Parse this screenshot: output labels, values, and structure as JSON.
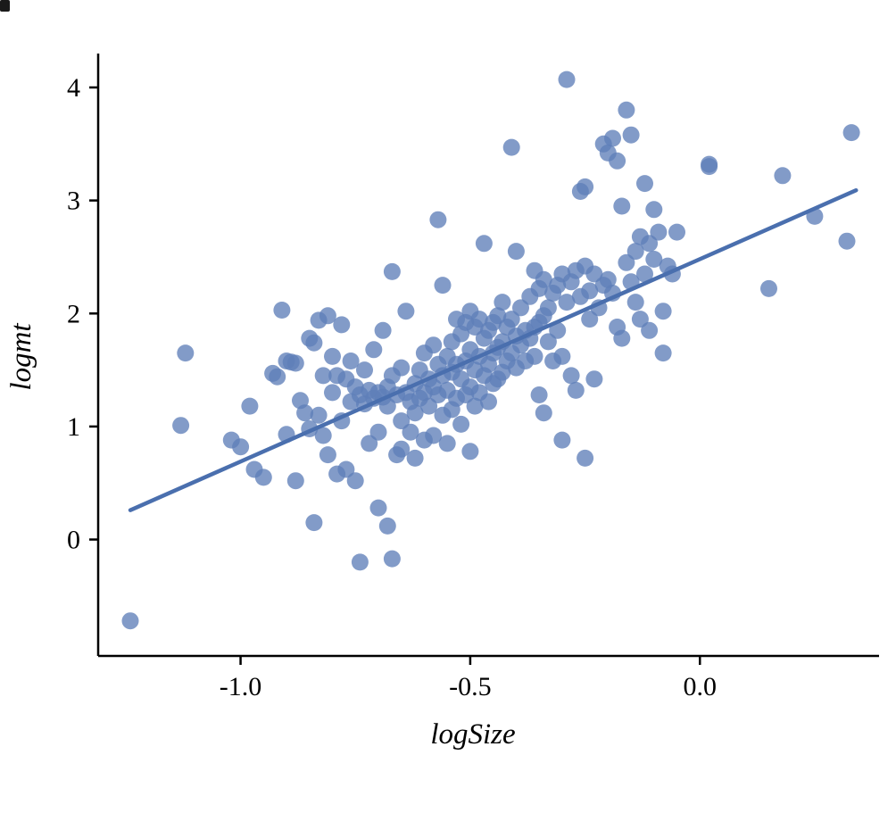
{
  "chart_data": {
    "type": "scatter",
    "title": "",
    "xlabel": "logSize",
    "ylabel": "logmt",
    "xlim": [
      -1.31,
      0.39
    ],
    "ylim": [
      -1.03,
      4.3
    ],
    "grid": false,
    "legend": "none",
    "point_color": "#5f7fb8",
    "point_opacity": 0.78,
    "point_radius": 9.5,
    "line_color": "#4a6fae",
    "axis_color": "#000000",
    "x_ticks": [
      {
        "v": -1.0,
        "label": "-1.0"
      },
      {
        "v": -0.5,
        "label": "-0.5"
      },
      {
        "v": 0.0,
        "label": "0.0"
      }
    ],
    "y_ticks": [
      {
        "v": 0,
        "label": "0"
      },
      {
        "v": 1,
        "label": "1"
      },
      {
        "v": 2,
        "label": "2"
      },
      {
        "v": 3,
        "label": "3"
      },
      {
        "v": 4,
        "label": "4"
      }
    ],
    "trend_line": {
      "x1": -1.24,
      "y1": 0.26,
      "x2": 0.34,
      "y2": 3.09
    },
    "points": [
      [
        -1.24,
        -0.72
      ],
      [
        -1.12,
        1.65
      ],
      [
        -1.13,
        1.01
      ],
      [
        -1.02,
        0.88
      ],
      [
        -1.0,
        0.82
      ],
      [
        -0.98,
        1.18
      ],
      [
        -0.97,
        0.62
      ],
      [
        -0.95,
        0.55
      ],
      [
        -0.93,
        1.47
      ],
      [
        -0.92,
        1.44
      ],
      [
        -0.91,
        2.03
      ],
      [
        -0.9,
        1.58
      ],
      [
        -0.9,
        0.93
      ],
      [
        -0.89,
        1.57
      ],
      [
        -0.88,
        1.56
      ],
      [
        -0.88,
        0.52
      ],
      [
        -0.87,
        1.23
      ],
      [
        -0.86,
        1.12
      ],
      [
        -0.85,
        0.98
      ],
      [
        -0.85,
        1.78
      ],
      [
        -0.84,
        1.74
      ],
      [
        -0.84,
        0.15
      ],
      [
        -0.83,
        1.1
      ],
      [
        -0.83,
        1.94
      ],
      [
        -0.82,
        1.45
      ],
      [
        -0.82,
        0.92
      ],
      [
        -0.81,
        1.98
      ],
      [
        -0.81,
        0.75
      ],
      [
        -0.8,
        1.62
      ],
      [
        -0.8,
        1.3
      ],
      [
        -0.79,
        1.45
      ],
      [
        -0.79,
        0.58
      ],
      [
        -0.78,
        1.9
      ],
      [
        -0.78,
        1.05
      ],
      [
        -0.77,
        1.42
      ],
      [
        -0.77,
        0.62
      ],
      [
        -0.76,
        1.58
      ],
      [
        -0.76,
        1.22
      ],
      [
        -0.75,
        1.35
      ],
      [
        -0.75,
        0.52
      ],
      [
        -0.74,
        -0.2
      ],
      [
        -0.74,
        1.28
      ],
      [
        -0.73,
        1.5
      ],
      [
        -0.73,
        1.2
      ],
      [
        -0.72,
        1.32
      ],
      [
        -0.72,
        0.85
      ],
      [
        -0.71,
        1.25
      ],
      [
        -0.71,
        1.68
      ],
      [
        -0.7,
        1.3
      ],
      [
        -0.7,
        0.95
      ],
      [
        -0.7,
        0.28
      ],
      [
        -0.69,
        1.85
      ],
      [
        -0.69,
        1.26
      ],
      [
        -0.68,
        1.35
      ],
      [
        -0.68,
        0.12
      ],
      [
        -0.68,
        1.18
      ],
      [
        -0.67,
        -0.17
      ],
      [
        -0.67,
        1.45
      ],
      [
        -0.67,
        2.37
      ],
      [
        -0.66,
        1.28
      ],
      [
        -0.66,
        0.75
      ],
      [
        -0.65,
        1.52
      ],
      [
        -0.65,
        1.05
      ],
      [
        -0.65,
        0.8
      ],
      [
        -0.64,
        1.3
      ],
      [
        -0.64,
        2.02
      ],
      [
        -0.63,
        1.22
      ],
      [
        -0.63,
        0.95
      ],
      [
        -0.62,
        1.38
      ],
      [
        -0.62,
        1.12
      ],
      [
        -0.62,
        0.72
      ],
      [
        -0.61,
        1.5
      ],
      [
        -0.61,
        1.25
      ],
      [
        -0.6,
        1.65
      ],
      [
        -0.6,
        1.3
      ],
      [
        -0.6,
        0.88
      ],
      [
        -0.59,
        1.42
      ],
      [
        -0.59,
        1.18
      ],
      [
        -0.58,
        1.72
      ],
      [
        -0.58,
        1.35
      ],
      [
        -0.58,
        0.92
      ],
      [
        -0.57,
        1.55
      ],
      [
        -0.57,
        1.28
      ],
      [
        -0.57,
        2.83
      ],
      [
        -0.56,
        1.45
      ],
      [
        -0.56,
        1.1
      ],
      [
        -0.56,
        2.25
      ],
      [
        -0.55,
        1.62
      ],
      [
        -0.55,
        1.32
      ],
      [
        -0.55,
        0.85
      ],
      [
        -0.54,
        1.75
      ],
      [
        -0.54,
        1.48
      ],
      [
        -0.54,
        1.15
      ],
      [
        -0.53,
        1.95
      ],
      [
        -0.53,
        1.55
      ],
      [
        -0.53,
        1.25
      ],
      [
        -0.52,
        1.82
      ],
      [
        -0.52,
        1.42
      ],
      [
        -0.52,
        1.02
      ],
      [
        -0.51,
        1.92
      ],
      [
        -0.51,
        1.58
      ],
      [
        -0.51,
        1.28
      ],
      [
        -0.5,
        2.02
      ],
      [
        -0.5,
        1.68
      ],
      [
        -0.5,
        1.35
      ],
      [
        -0.5,
        0.78
      ],
      [
        -0.49,
        1.88
      ],
      [
        -0.49,
        1.5
      ],
      [
        -0.49,
        1.18
      ],
      [
        -0.48,
        1.95
      ],
      [
        -0.48,
        1.62
      ],
      [
        -0.48,
        1.3
      ],
      [
        -0.47,
        1.78
      ],
      [
        -0.47,
        1.45
      ],
      [
        -0.47,
        2.62
      ],
      [
        -0.46,
        1.85
      ],
      [
        -0.46,
        1.55
      ],
      [
        -0.46,
        1.22
      ],
      [
        -0.45,
        1.92
      ],
      [
        -0.45,
        1.65
      ],
      [
        -0.45,
        1.38
      ],
      [
        -0.44,
        1.98
      ],
      [
        -0.44,
        1.7
      ],
      [
        -0.44,
        1.42
      ],
      [
        -0.43,
        2.1
      ],
      [
        -0.43,
        1.75
      ],
      [
        -0.43,
        1.48
      ],
      [
        -0.42,
        1.88
      ],
      [
        -0.42,
        1.58
      ],
      [
        -0.41,
        3.47
      ],
      [
        -0.41,
        1.95
      ],
      [
        -0.41,
        1.65
      ],
      [
        -0.4,
        2.55
      ],
      [
        -0.4,
        1.8
      ],
      [
        -0.4,
        1.52
      ],
      [
        -0.39,
        2.05
      ],
      [
        -0.39,
        1.72
      ],
      [
        -0.38,
        1.85
      ],
      [
        -0.38,
        1.58
      ],
      [
        -0.37,
        2.15
      ],
      [
        -0.37,
        1.78
      ],
      [
        -0.36,
        2.38
      ],
      [
        -0.36,
        1.88
      ],
      [
        -0.36,
        1.62
      ],
      [
        -0.35,
        2.22
      ],
      [
        -0.35,
        1.92
      ],
      [
        -0.35,
        1.28
      ],
      [
        -0.34,
        2.3
      ],
      [
        -0.34,
        1.98
      ],
      [
        -0.34,
        1.12
      ],
      [
        -0.33,
        2.05
      ],
      [
        -0.33,
        1.75
      ],
      [
        -0.32,
        2.18
      ],
      [
        -0.32,
        1.58
      ],
      [
        -0.31,
        2.25
      ],
      [
        -0.31,
        1.85
      ],
      [
        -0.3,
        2.35
      ],
      [
        -0.3,
        1.62
      ],
      [
        -0.3,
        0.88
      ],
      [
        -0.29,
        4.07
      ],
      [
        -0.29,
        2.1
      ],
      [
        -0.28,
        2.28
      ],
      [
        -0.28,
        1.45
      ],
      [
        -0.27,
        2.38
      ],
      [
        -0.27,
        1.32
      ],
      [
        -0.26,
        3.08
      ],
      [
        -0.26,
        2.15
      ],
      [
        -0.25,
        3.12
      ],
      [
        -0.25,
        2.42
      ],
      [
        -0.25,
        0.72
      ],
      [
        -0.24,
        2.2
      ],
      [
        -0.24,
        1.95
      ],
      [
        -0.23,
        2.35
      ],
      [
        -0.23,
        1.42
      ],
      [
        -0.22,
        2.05
      ],
      [
        -0.21,
        3.5
      ],
      [
        -0.21,
        2.25
      ],
      [
        -0.2,
        3.42
      ],
      [
        -0.2,
        2.3
      ],
      [
        -0.19,
        3.55
      ],
      [
        -0.19,
        2.18
      ],
      [
        -0.18,
        3.35
      ],
      [
        -0.18,
        1.88
      ],
      [
        -0.17,
        2.95
      ],
      [
        -0.17,
        1.78
      ],
      [
        -0.16,
        3.8
      ],
      [
        -0.16,
        2.45
      ],
      [
        -0.15,
        3.58
      ],
      [
        -0.15,
        2.28
      ],
      [
        -0.14,
        2.55
      ],
      [
        -0.14,
        2.1
      ],
      [
        -0.13,
        2.68
      ],
      [
        -0.13,
        1.95
      ],
      [
        -0.12,
        3.15
      ],
      [
        -0.12,
        2.35
      ],
      [
        -0.11,
        2.62
      ],
      [
        -0.11,
        1.85
      ],
      [
        -0.1,
        2.92
      ],
      [
        -0.1,
        2.48
      ],
      [
        -0.09,
        2.72
      ],
      [
        -0.08,
        2.02
      ],
      [
        -0.08,
        1.65
      ],
      [
        -0.07,
        2.42
      ],
      [
        -0.06,
        2.35
      ],
      [
        -0.05,
        2.72
      ],
      [
        0.02,
        3.3
      ],
      [
        0.02,
        3.32
      ],
      [
        0.15,
        2.22
      ],
      [
        0.18,
        3.22
      ],
      [
        0.25,
        2.86
      ],
      [
        0.32,
        2.64
      ],
      [
        0.33,
        3.6
      ]
    ]
  }
}
